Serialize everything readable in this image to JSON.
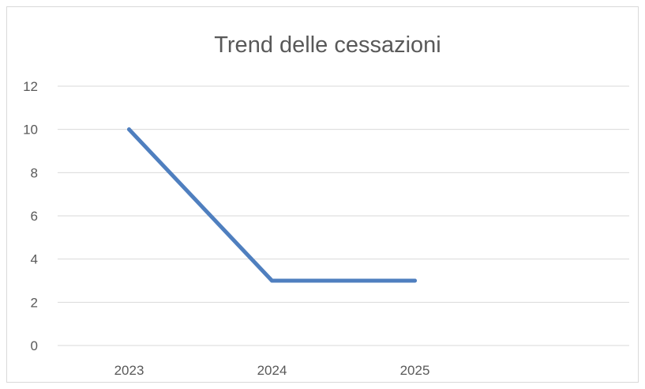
{
  "chart_data": {
    "type": "line",
    "title": "Trend delle cessazioni",
    "categories": [
      "2023",
      "2024",
      "2025"
    ],
    "slots": 4,
    "series": [
      {
        "values": [
          10,
          3,
          3
        ],
        "color": "#4f7fbf"
      }
    ],
    "ylim": [
      0,
      12
    ],
    "yticks": [
      0,
      2,
      4,
      6,
      8,
      10,
      12
    ],
    "grid": true,
    "legend": "none"
  }
}
